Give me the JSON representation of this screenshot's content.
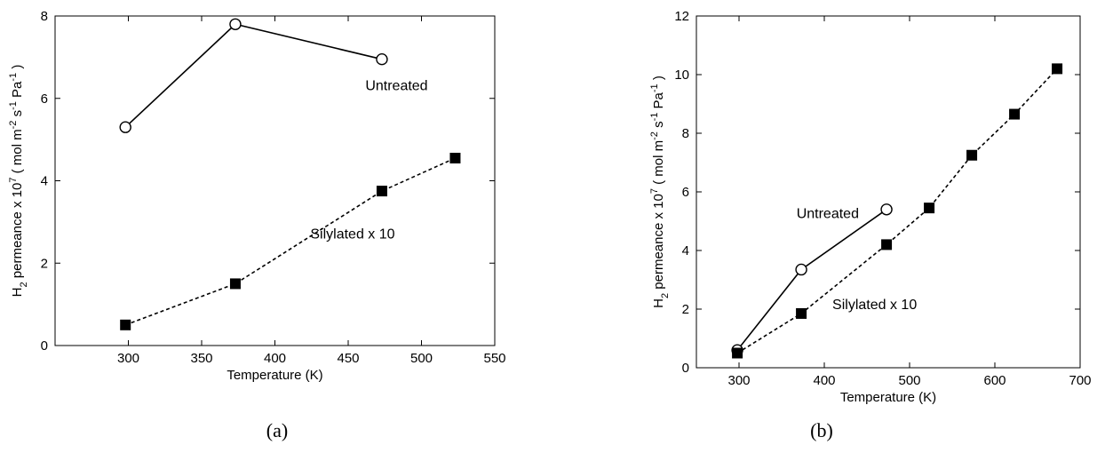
{
  "chart_data": [
    {
      "type": "line",
      "panel_label": "(a)",
      "xlabel": "Temperature (K)",
      "ylabel": "H2 permeance x 107 ( mol m-2 s-1 Pa-1 )",
      "xlim": [
        250,
        550
      ],
      "ylim": [
        0,
        8
      ],
      "xticks": [
        300,
        350,
        400,
        450,
        500,
        550
      ],
      "yticks": [
        0,
        2,
        4,
        6,
        8
      ],
      "grid": false,
      "series": [
        {
          "name": "Untreated",
          "marker": "open-circle",
          "line": "solid",
          "x": [
            298,
            373,
            473
          ],
          "y": [
            5.3,
            7.8,
            6.95
          ]
        },
        {
          "name": "Silylated x 10",
          "marker": "filled-square",
          "line": "dashed",
          "x": [
            298,
            373,
            473,
            523
          ],
          "y": [
            0.5,
            1.5,
            3.75,
            4.55
          ]
        }
      ],
      "annotations": [
        {
          "text": "Untreated",
          "x": 483,
          "y": 6.2
        },
        {
          "text": "Silylated x 10",
          "x": 453,
          "y": 2.6
        }
      ]
    },
    {
      "type": "line",
      "panel_label": "(b)",
      "xlabel": "Temperature (K)",
      "ylabel": "H2 permeance x 107 ( mol m-2 s-1 Pa-1 )",
      "xlim": [
        250,
        700
      ],
      "ylim": [
        0,
        12
      ],
      "xticks": [
        300,
        400,
        500,
        600,
        700
      ],
      "yticks": [
        0,
        2,
        4,
        6,
        8,
        10,
        12
      ],
      "grid": false,
      "series": [
        {
          "name": "Untreated",
          "marker": "open-circle",
          "line": "solid",
          "x": [
            298,
            373,
            473
          ],
          "y": [
            0.6,
            3.35,
            5.4
          ]
        },
        {
          "name": "Silylated x 10",
          "marker": "filled-square",
          "line": "dashed",
          "x": [
            298,
            373,
            473,
            523,
            573,
            623,
            673
          ],
          "y": [
            0.5,
            1.85,
            4.2,
            5.45,
            7.25,
            8.65,
            10.2
          ]
        }
      ],
      "annotations": [
        {
          "text": "Untreated",
          "x": 404,
          "y": 5.1
        },
        {
          "text": "Silylated x 10",
          "x": 459,
          "y": 2.0
        }
      ]
    }
  ]
}
